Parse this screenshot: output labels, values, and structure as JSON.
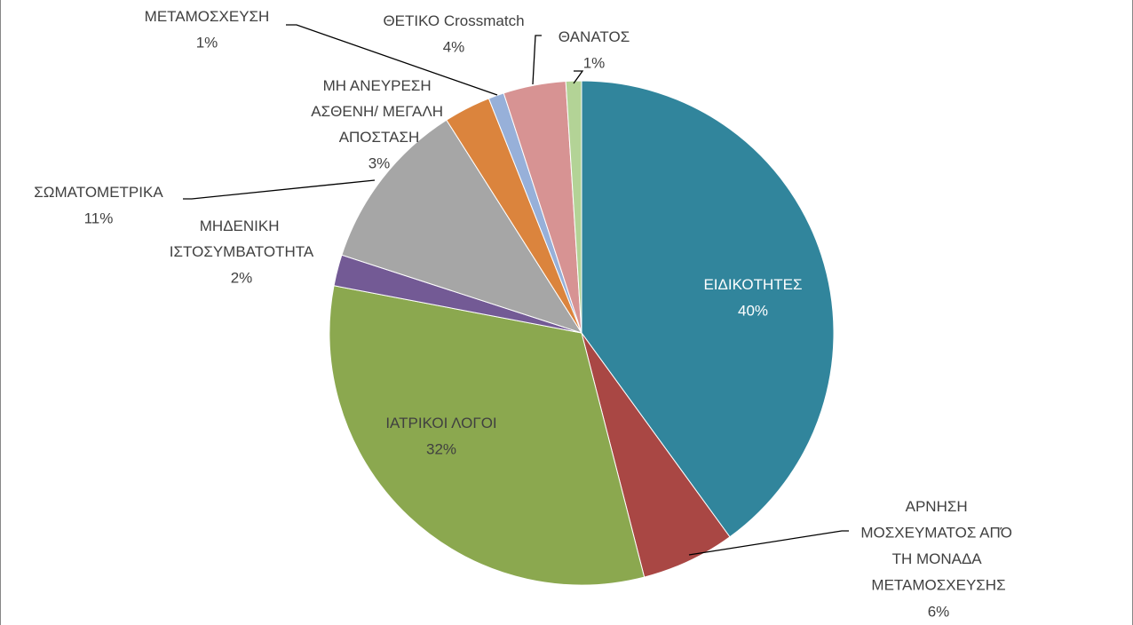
{
  "chart_data": {
    "type": "pie",
    "categories": [
      "ΕΙΔΙΚΟΤΗΤΕΣ",
      "ΑΡΝΗΣΗ ΜΟΣΧΕΥΜΑΤΟΣ ΑΠΌ ΤΗ ΜΟΝΑΔΑ ΜΕΤΑΜΟΣΧΕΥΣΗΣ",
      "ΙΑΤΡΙΚΟΙ ΛΟΓΟΙ",
      "ΜΗΔΕΝΙΚΗ ΙΣΤΟΣΥΜΒΑΤΟΤΗΤΑ",
      "ΣΩΜΑΤΟΜΕΤΡΙΚΑ",
      "ΜΗ ΑΝΕΥΡΕΣΗ ΑΣΘΕΝΗ/ ΜΕΓΑΛΗ ΑΠΟΣΤΑΣΗ",
      "ΜΕΤΑΜΟΣΧΕΥΣΗ",
      "ΘΕΤΙΚΟ Crossmatch",
      "ΘΑΝΑΤΟΣ"
    ],
    "values": [
      40,
      6,
      32,
      2,
      11,
      3,
      1,
      4,
      1
    ],
    "value_labels": [
      "40%",
      "6%",
      "32%",
      "2%",
      "11%",
      "3%",
      "1%",
      "4%",
      "1%"
    ],
    "colors": [
      "#31859c",
      "#a94744",
      "#8ba84f",
      "#735a95",
      "#a6a6a6",
      "#db843d",
      "#97b0d9",
      "#d79393",
      "#b3d396"
    ]
  }
}
